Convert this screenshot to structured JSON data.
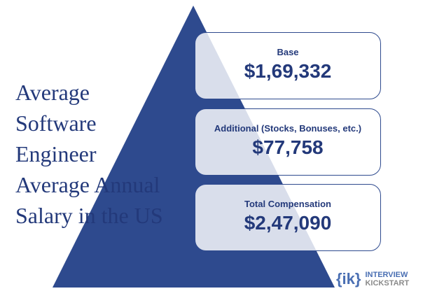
{
  "colors": {
    "pyramid": "#2e4a8e",
    "text": "#23397a",
    "card_border": "#2e4a8e",
    "logo_blue": "#4a6fb3",
    "logo_gray": "#8a8a8a"
  },
  "heading": {
    "lines": [
      "Average",
      "Software",
      "Engineer",
      "Average Annual",
      "Salary in the US"
    ]
  },
  "cards": [
    {
      "label": "Base",
      "value": "$1,69,332"
    },
    {
      "label": "Additional (Stocks, Bonuses, etc.)",
      "value": "$77,758"
    },
    {
      "label": "Total Compensation",
      "value": "$2,47,090"
    }
  ],
  "logo": {
    "mark": "{ik}",
    "line1": "INTERVIEW",
    "line2": "KICKSTART"
  }
}
